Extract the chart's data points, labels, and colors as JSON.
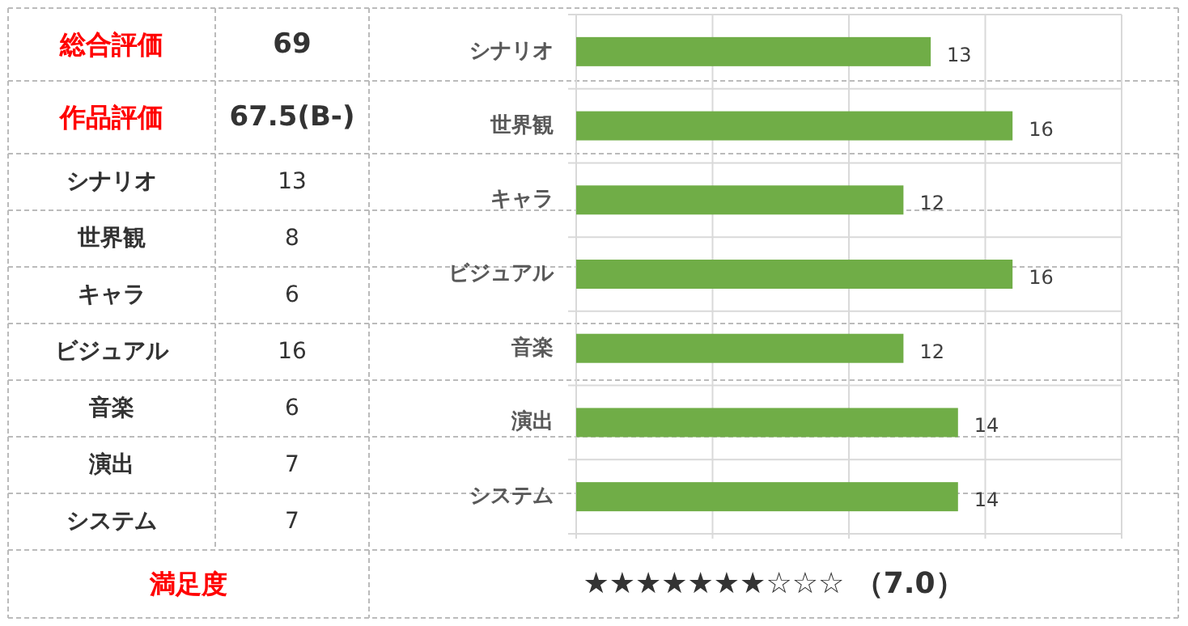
{
  "chart_data": [
    {
      "type": "other",
      "categories": [
        "総合評価",
        "作品評価",
        "シナリオ",
        "世界観",
        "キャラ",
        "ビジュアル",
        "音楽",
        "演出",
        "システム",
        "満足度"
      ],
      "value_labels": [
        "69",
        "67.5(B-)",
        "13",
        "8",
        "6",
        "16",
        "6",
        "7",
        "7",
        "★★★★★★★☆☆☆ （7.0）"
      ],
      "colors": [
        "#ff0000",
        "#ff0000",
        "#333333",
        "#333333",
        "#333333",
        "#333333",
        "#333333",
        "#333333",
        "#333333",
        "#ff0000"
      ]
    },
    {
      "type": "bar",
      "orientation": "horizontal",
      "categories": [
        "シナリオ",
        "世界観",
        "キャラ",
        "ビジュアル",
        "音楽",
        "演出",
        "システム"
      ],
      "values": [
        13,
        16,
        12,
        16,
        12,
        14,
        14
      ],
      "color": "#70ad47",
      "xlim": [
        0,
        20
      ],
      "xticks": [
        {
          "value": 0,
          "label": null
        },
        {
          "value": 5,
          "label": null
        },
        {
          "value": 10,
          "label": null
        },
        {
          "value": 15,
          "label": null
        },
        {
          "value": 20,
          "label": null
        }
      ],
      "grid": true,
      "data_labels": true
    }
  ]
}
